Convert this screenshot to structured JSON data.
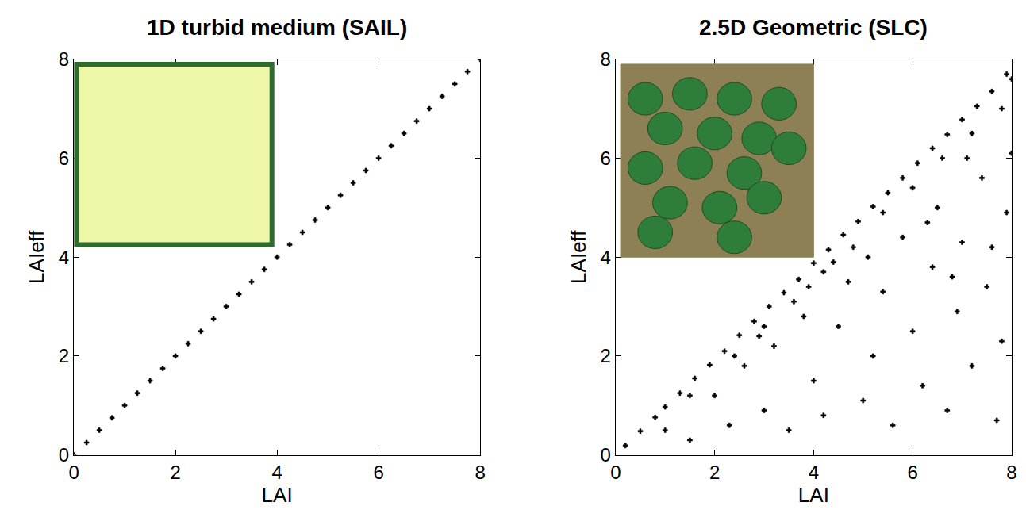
{
  "chart_data": [
    {
      "type": "scatter",
      "title": "1D turbid medium (SAIL)",
      "x_label": "LAI",
      "y_label": "LAIeff",
      "color": "#000000",
      "marker": "plus",
      "xlim": [
        0,
        8
      ],
      "ylim": [
        0,
        8
      ],
      "xticks": [
        0,
        2,
        4,
        6,
        8
      ],
      "yticks": [
        0,
        2,
        4,
        6,
        8
      ],
      "x": [
        0,
        0.25,
        0.5,
        0.75,
        1,
        1.25,
        1.5,
        1.75,
        2,
        2.25,
        2.5,
        2.75,
        3,
        3.25,
        3.5,
        3.75,
        4,
        4.25,
        4.5,
        4.75,
        5,
        5.25,
        5.5,
        5.75,
        6,
        6.25,
        6.5,
        6.75,
        7,
        7.25,
        7.5,
        7.75,
        8
      ],
      "values": [
        0,
        0.25,
        0.5,
        0.75,
        1,
        1.25,
        1.5,
        1.75,
        2,
        2.25,
        2.5,
        2.75,
        3,
        3.25,
        3.5,
        3.75,
        4,
        4.25,
        4.5,
        4.75,
        5,
        5.25,
        5.5,
        5.75,
        6,
        6.25,
        6.5,
        6.75,
        7,
        7.25,
        7.5,
        7.75,
        8
      ]
    },
    {
      "type": "scatter",
      "title": "2.5D Geometric (SLC)",
      "x_label": "LAI",
      "y_label": "LAIeff",
      "color": "#000000",
      "marker": "plus",
      "xlim": [
        0,
        8
      ],
      "ylim": [
        0,
        8
      ],
      "xticks": [
        0,
        2,
        4,
        6,
        8
      ],
      "yticks": [
        0,
        2,
        4,
        6,
        8
      ],
      "x": [
        0.2,
        0.5,
        0.8,
        1.0,
        1.3,
        1.6,
        1.9,
        2.2,
        2.5,
        2.8,
        3.1,
        3.4,
        3.7,
        4.0,
        4.3,
        4.6,
        4.9,
        5.2,
        5.5,
        5.8,
        6.1,
        6.4,
        6.7,
        7.0,
        7.3,
        7.6,
        7.9,
        1.5,
        2.4,
        3.0,
        3.6,
        4.2,
        4.8,
        5.4,
        6.0,
        6.6,
        7.2,
        7.8,
        8.0,
        1.0,
        1.5,
        2.0,
        2.3,
        2.6,
        3.0,
        3.2,
        3.5,
        3.8,
        4.0,
        4.2,
        4.5,
        4.7,
        5.0,
        5.2,
        5.4,
        5.6,
        5.8,
        6.0,
        6.2,
        6.4,
        6.5,
        6.7,
        6.9,
        7.0,
        7.2,
        7.4,
        7.5,
        7.7,
        7.8,
        7.9,
        8.0,
        5.1,
        6.3,
        7.1,
        4.4,
        3.9,
        2.9,
        6.8,
        7.6
      ],
      "values": [
        0.19,
        0.48,
        0.76,
        0.97,
        1.25,
        1.55,
        1.82,
        2.1,
        2.42,
        2.7,
        3.0,
        3.28,
        3.55,
        3.88,
        4.15,
        4.45,
        4.72,
        5.02,
        5.3,
        5.6,
        5.9,
        6.2,
        6.48,
        6.78,
        7.05,
        7.35,
        7.7,
        1.2,
        2.0,
        2.6,
        3.1,
        3.7,
        4.2,
        4.9,
        5.4,
        6.0,
        6.5,
        7.0,
        7.6,
        0.5,
        0.3,
        1.2,
        0.6,
        1.8,
        0.9,
        2.2,
        0.5,
        2.8,
        1.5,
        0.8,
        2.6,
        3.5,
        1.1,
        2.0,
        3.3,
        0.6,
        4.4,
        2.5,
        1.4,
        3.8,
        5.0,
        0.9,
        2.9,
        4.3,
        1.8,
        5.6,
        3.4,
        0.7,
        2.3,
        4.9,
        6.1,
        4.0,
        4.7,
        6.0,
        3.9,
        3.4,
        2.4,
        3.6,
        4.2
      ]
    }
  ]
}
